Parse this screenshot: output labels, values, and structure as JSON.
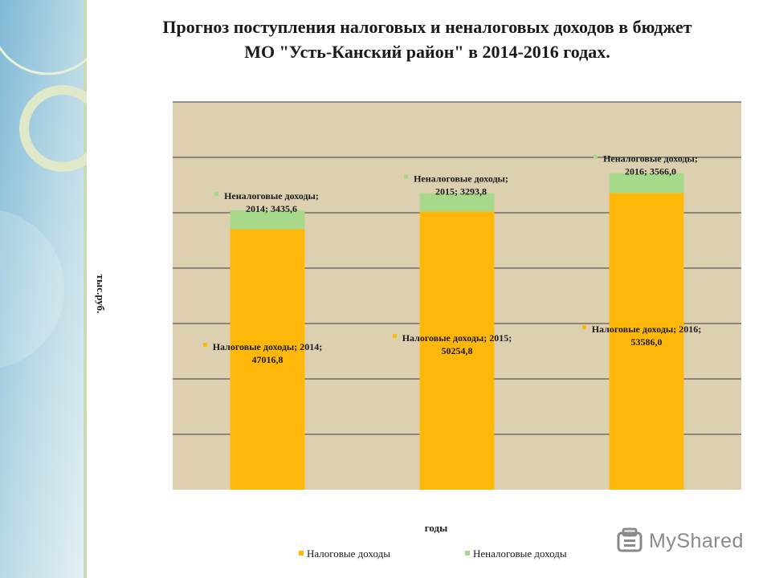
{
  "title_lines": [
    "Прогноз поступления налоговых и неналоговых доходов в бюджет",
    "МО \"Усть-Канский район\" в 2014-2016 годах."
  ],
  "colors": {
    "tax": "#FFB80A",
    "nontax": "#A8D98A",
    "plot_bg": "#DDD0B0",
    "grid": "#3a3a3a"
  },
  "chart_data": {
    "type": "bar",
    "stacked": true,
    "categories": [
      "2014",
      "2015",
      "2016"
    ],
    "series": [
      {
        "name": "Налоговые доходы",
        "values": [
          47016.8,
          50254.8,
          53586.0
        ]
      },
      {
        "name": "Неналоговые доходы",
        "values": [
          3435.6,
          3293.8,
          3566.0
        ]
      }
    ],
    "data_labels": {
      "tax": [
        [
          "Налоговые доходы; 2014;",
          "47016,8"
        ],
        [
          "Налоговые доходы; 2015;",
          "50254,8"
        ],
        [
          "Налоговые доходы; 2016;",
          "53586,0"
        ]
      ],
      "nontax": [
        [
          "Неналоговые доходы;",
          "2014; 3435,6"
        ],
        [
          "Неналоговые доходы;",
          "2015; 3293,8"
        ],
        [
          "Неналоговые доходы;",
          "2016; 3566,0"
        ]
      ]
    },
    "xlabel": "годы",
    "ylabel": "тыс.руб.",
    "ylim": [
      0,
      70000
    ],
    "gridlines": true,
    "legend": {
      "position": "bottom",
      "entries": [
        "Налоговые доходы",
        "Неналоговые доходы"
      ]
    }
  },
  "watermark": {
    "text": "MyShared"
  }
}
